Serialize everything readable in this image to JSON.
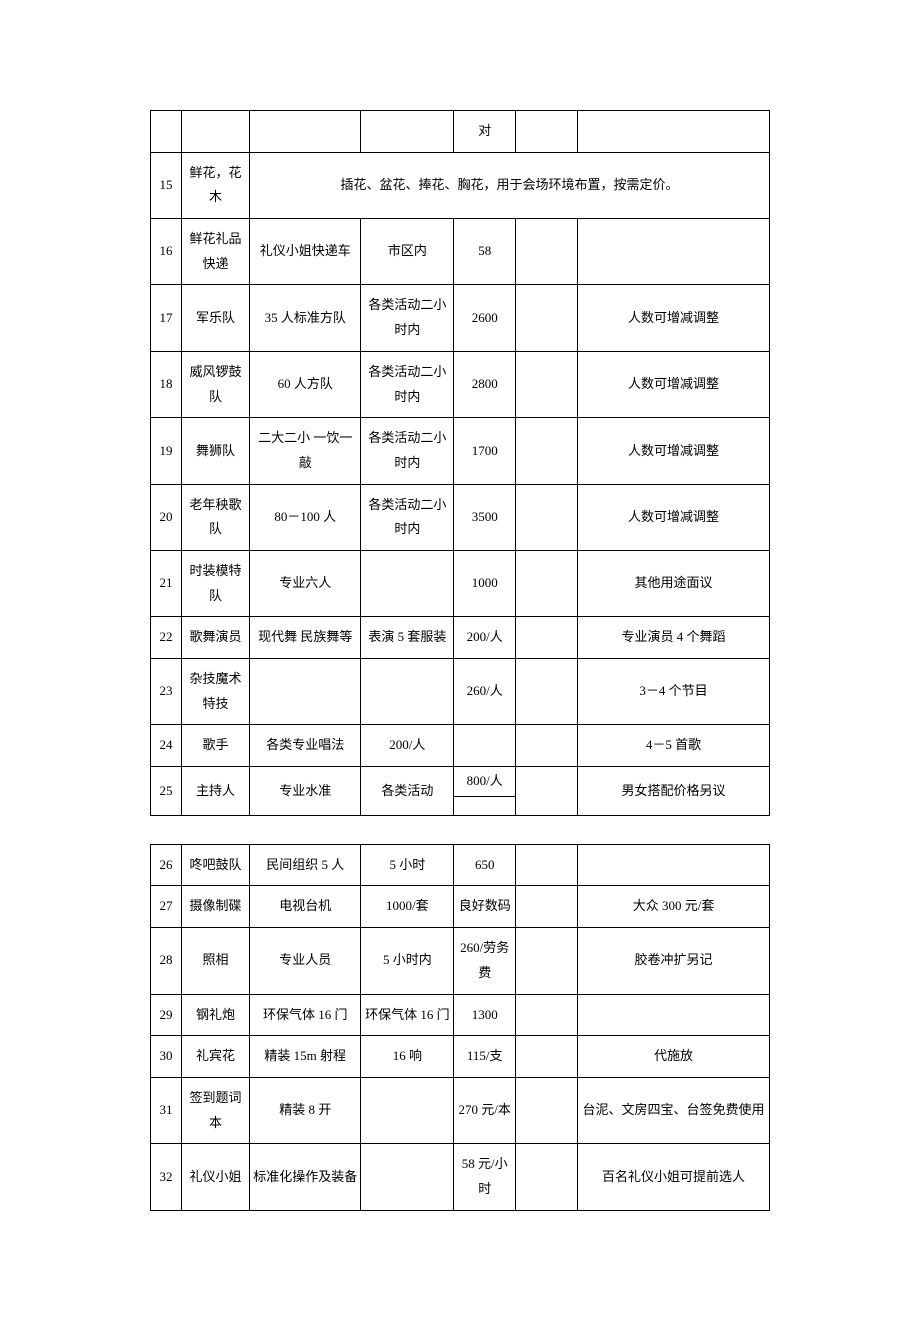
{
  "table1": {
    "rows": [
      {
        "n": "",
        "c2": "",
        "c3": "",
        "c4": "",
        "c5": "对",
        "c6": "",
        "c7": ""
      },
      {
        "n": "15",
        "c2": "鲜花，花木",
        "span": "插花、盆花、捧花、胸花，用于会场环境布置，按需定价。"
      },
      {
        "n": "16",
        "c2": "鲜花礼品快递",
        "c3": "礼仪小姐快递车",
        "c4": "市区内",
        "c5": "58",
        "c6": "",
        "c7": ""
      },
      {
        "n": "17",
        "c2": "军乐队",
        "c3": "35 人标准方队",
        "c4": "各类活动二小时内",
        "c5": "2600",
        "c6": "",
        "c7": "人数可增减调整"
      },
      {
        "n": "18",
        "c2": "威风锣鼓队",
        "c3": "60 人方队",
        "c4": "各类活动二小时内",
        "c5": "2800",
        "c6": "",
        "c7": "人数可增减调整"
      },
      {
        "n": "19",
        "c2": "舞狮队",
        "c3": "二大二小 一饮一敲",
        "c4": "各类活动二小时内",
        "c5": "1700",
        "c6": "",
        "c7": "人数可增减调整"
      },
      {
        "n": "20",
        "c2": "老年秧歌队",
        "c3": "80－100 人",
        "c4": "各类活动二小时内",
        "c5": "3500",
        "c6": "",
        "c7": "人数可增减调整"
      },
      {
        "n": "21",
        "c2": "时装模特队",
        "c3": "专业六人",
        "c4": "",
        "c5": "1000",
        "c6": "",
        "c7": "其他用途面议"
      },
      {
        "n": "22",
        "c2": "歌舞演员",
        "c3": "现代舞 民族舞等",
        "c4": "表演 5 套服装",
        "c5": "200/人",
        "c6": "",
        "c7": "专业演员 4 个舞蹈"
      },
      {
        "n": "23",
        "c2": "杂技魔术特技",
        "c3": "",
        "c4": "",
        "c5": "260/人",
        "c6": "",
        "c7": "3－4 个节目"
      },
      {
        "n": "24",
        "c2": "歌手",
        "c3": "各类专业唱法",
        "c4": "200/人",
        "c5": "",
        "c6": "",
        "c7": "4－5 首歌"
      },
      {
        "n": "25",
        "c2": "主持人",
        "c3": "专业水准",
        "c4": "各类活动",
        "c5a": "800/人",
        "c5b": "",
        "c6": "",
        "c7": "男女搭配价格另议"
      }
    ]
  },
  "table2": {
    "rows": [
      {
        "n": "26",
        "c2": "咚吧鼓队",
        "c3": "民间组织 5 人",
        "c4": "5 小时",
        "c5": "650",
        "c6": "",
        "c7": ""
      },
      {
        "n": "27",
        "c2": "摄像制碟",
        "c3": "电视台机",
        "c4": "1000/套",
        "c5": "良好数码",
        "c6": "",
        "c7": "大众 300 元/套"
      },
      {
        "n": "28",
        "c2": "照相",
        "c3": "专业人员",
        "c4": "5 小时内",
        "c5": "260/劳务费",
        "c6": "",
        "c7": "胶卷冲扩另记"
      },
      {
        "n": "29",
        "c2": "钢礼炮",
        "c3": "环保气体 16 门",
        "c4": "环保气体 16 门",
        "c5": "1300",
        "c6": "",
        "c7": ""
      },
      {
        "n": "30",
        "c2": "礼宾花",
        "c3": "精装 15m 射程",
        "c4": "16 响",
        "c5": "115/支",
        "c6": "",
        "c7": "代施放"
      },
      {
        "n": "31",
        "c2": "签到题词本",
        "c3": "精装 8 开",
        "c4": "",
        "c5": "270 元/本",
        "c6": "",
        "c7": "台泥、文房四宝、台签免费使用"
      },
      {
        "n": "32",
        "c2": "礼仪小姐",
        "c3": "标准化操作及装备",
        "c4": "",
        "c5": "58 元/小时",
        "c6": "",
        "c7": "百名礼仪小姐可提前选人"
      }
    ]
  }
}
